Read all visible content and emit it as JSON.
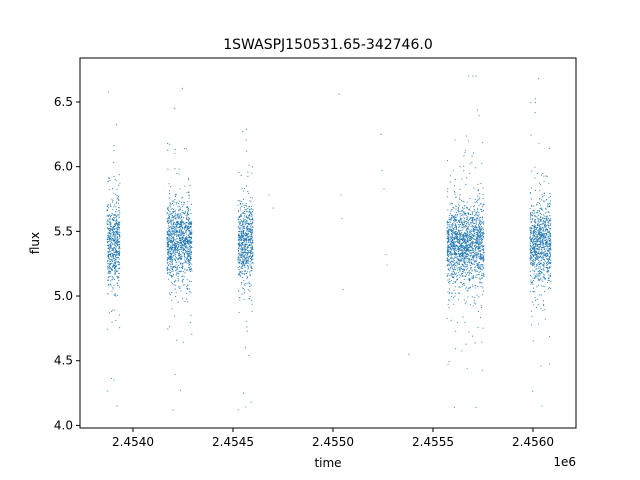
{
  "chart_data": {
    "type": "scatter",
    "title": "1SWASPJ150531.65-342746.0",
    "xlabel": "time",
    "ylabel": "flux",
    "x_offset_label": "1e6",
    "xlim": [
      2453735,
      2456215
    ],
    "ylim": [
      3.98,
      6.84
    ],
    "x_ticks": [
      2454000,
      2454500,
      2455000,
      2455500,
      2456000
    ],
    "x_tick_labels": [
      "2.4540",
      "2.4545",
      "2.4550",
      "2.4555",
      "2.4560"
    ],
    "y_ticks": [
      4.0,
      4.5,
      5.0,
      5.5,
      6.0,
      6.5
    ],
    "y_tick_labels": [
      "4.0",
      "4.5",
      "5.0",
      "5.5",
      "6.0",
      "6.5"
    ],
    "grid": false,
    "marker_color": "#1f77b4",
    "clusters": [
      {
        "x_range": [
          2453870,
          2453935
        ],
        "y_center": 5.4,
        "y_spread": 0.15,
        "y_min": 4.15,
        "y_max": 6.68
      },
      {
        "x_range": [
          2454170,
          2454295
        ],
        "y_center": 5.42,
        "y_spread": 0.14,
        "y_min": 4.12,
        "y_max": 6.66
      },
      {
        "x_range": [
          2454525,
          2454600
        ],
        "y_center": 5.42,
        "y_spread": 0.15,
        "y_min": 4.12,
        "y_max": 6.7
      },
      {
        "x_range": [
          2455570,
          2455755
        ],
        "y_center": 5.4,
        "y_spread": 0.14,
        "y_min": 4.14,
        "y_max": 6.7
      },
      {
        "x_range": [
          2455985,
          2456090
        ],
        "y_center": 5.4,
        "y_spread": 0.14,
        "y_min": 4.15,
        "y_max": 6.68
      }
    ],
    "isolated_points": [
      {
        "x": 2454680,
        "y": 5.78
      },
      {
        "x": 2454700,
        "y": 5.68
      },
      {
        "x": 2455030,
        "y": 6.56
      },
      {
        "x": 2455040,
        "y": 5.78
      },
      {
        "x": 2455045,
        "y": 5.6
      },
      {
        "x": 2455050,
        "y": 5.05
      },
      {
        "x": 2455240,
        "y": 6.25
      },
      {
        "x": 2455245,
        "y": 5.97
      },
      {
        "x": 2455255,
        "y": 5.83
      },
      {
        "x": 2455265,
        "y": 5.32
      },
      {
        "x": 2455270,
        "y": 5.24
      },
      {
        "x": 2455380,
        "y": 4.55
      }
    ]
  }
}
